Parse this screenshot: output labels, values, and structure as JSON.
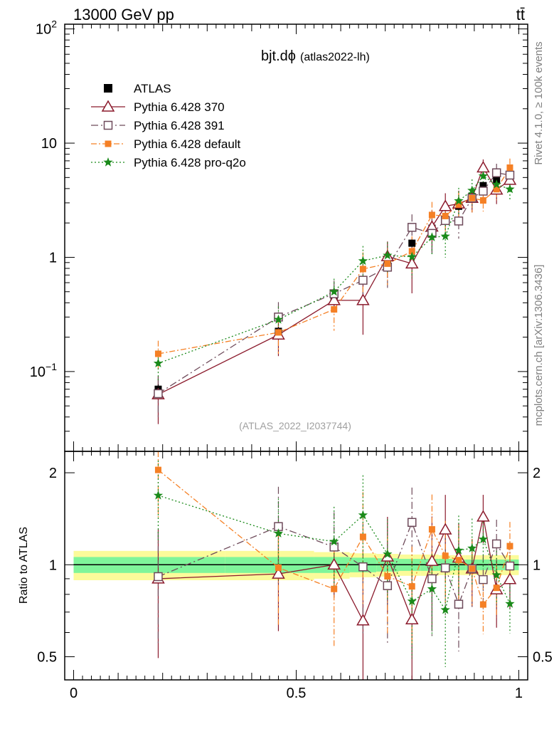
{
  "header": {
    "energy_label": "13000 GeV pp",
    "process_label": "tt̄"
  },
  "side_labels": {
    "rivet": "Rivet 4.1.0, ≥ 100k events",
    "mcplots": "mcplots.cern.ch [arXiv:1306.3436]"
  },
  "chart_data": {
    "type": "scatter",
    "title": "bjt.dϕ",
    "subtitle": "(atlas2022-lh)",
    "watermark": "(ATLAS_2022_I2037744)",
    "xlabel": "",
    "ylabel_ratio": "Ratio to ATLAS",
    "xlim": [
      -0.02,
      1.02
    ],
    "ylim_main": [
      0.02,
      110
    ],
    "ylim_ratio": [
      0.42,
      2.35
    ],
    "yscale": "log",
    "x_ticks": [
      {
        "value": 0,
        "label": "0"
      },
      {
        "value": 0.5,
        "label": "0.5"
      },
      {
        "value": 1,
        "label": "1"
      }
    ],
    "y_ticks_main": [
      {
        "value": 0.1,
        "base": "10",
        "exp": "−1"
      },
      {
        "value": 1,
        "base": "1",
        "exp": ""
      },
      {
        "value": 10,
        "base": "10",
        "exp": ""
      },
      {
        "value": 100,
        "base": "10",
        "exp": "2"
      }
    ],
    "y_ticks_ratio": [
      {
        "value": 0.5,
        "label": "0.5"
      },
      {
        "value": 1,
        "label": "1"
      },
      {
        "value": 2,
        "label": "2"
      }
    ],
    "x": [
      0.19,
      0.46,
      0.585,
      0.65,
      0.705,
      0.76,
      0.805,
      0.835,
      0.865,
      0.895,
      0.92,
      0.95,
      0.98
    ],
    "bin_edges": [
      0.0,
      0.34,
      0.54,
      0.62,
      0.68,
      0.73,
      0.78,
      0.82,
      0.85,
      0.88,
      0.91,
      0.935,
      0.965,
      1.0
    ],
    "reference": {
      "name": "ATLAS",
      "values": [
        0.07,
        0.225,
        0.42,
        0.64,
        0.96,
        1.33,
        1.8,
        2.15,
        2.8,
        3.4,
        4.25,
        4.7,
        5.3
      ],
      "errors": [
        0.007,
        0.02,
        0.03,
        0.04,
        0.06,
        0.08,
        0.1,
        0.12,
        0.15,
        0.17,
        0.2,
        0.22,
        0.25
      ],
      "band_inner": [
        0.06,
        0.06,
        0.06,
        0.055,
        0.05,
        0.045,
        0.045,
        0.045,
        0.04,
        0.04,
        0.04,
        0.04,
        0.04
      ],
      "band_outer": [
        0.11,
        0.11,
        0.1,
        0.09,
        0.085,
        0.08,
        0.08,
        0.075,
        0.075,
        0.075,
        0.075,
        0.075,
        0.075
      ]
    },
    "series": [
      {
        "name": "Pythia 6.428 370",
        "color": "#8b1a2c",
        "dash": "",
        "marker": "triangle-open",
        "values": [
          0.063,
          0.21,
          0.42,
          0.42,
          1.02,
          0.88,
          1.85,
          2.8,
          2.95,
          3.3,
          6.1,
          3.9,
          4.75
        ],
        "rel_err": [
          0.45,
          0.35,
          0.22,
          0.5,
          0.35,
          0.45,
          0.4,
          0.3,
          0.3,
          0.25,
          0.18,
          0.25,
          0.2
        ]
      },
      {
        "name": "Pythia 6.428 391",
        "color": "#6e4a5a",
        "dash": "10,4,2,4",
        "marker": "square-open",
        "values": [
          0.064,
          0.3,
          0.48,
          0.63,
          0.82,
          1.83,
          1.62,
          2.1,
          2.08,
          3.3,
          3.8,
          5.5,
          5.25
        ],
        "rel_err": [
          0.4,
          0.35,
          0.3,
          0.4,
          0.35,
          0.3,
          0.35,
          0.3,
          0.3,
          0.25,
          0.2,
          0.2,
          0.2
        ]
      },
      {
        "name": "Pythia 6.428 default",
        "color": "#f58025",
        "dash": "8,3,2,3",
        "marker": "square-filled",
        "values": [
          0.143,
          0.22,
          0.35,
          0.79,
          0.88,
          1.13,
          2.35,
          2.3,
          2.9,
          3.3,
          3.15,
          3.95,
          6.1
        ],
        "rel_err": [
          0.3,
          0.35,
          0.35,
          0.4,
          0.35,
          0.35,
          0.3,
          0.3,
          0.3,
          0.25,
          0.2,
          0.2,
          0.2
        ]
      },
      {
        "name": "Pythia 6.428 pro-q2o",
        "color": "#1a8a1a",
        "dash": "2,3",
        "marker": "star",
        "values": [
          0.118,
          0.285,
          0.5,
          0.93,
          1.04,
          1.01,
          1.5,
          1.53,
          3.12,
          3.85,
          5.15,
          4.35,
          3.95
        ],
        "rel_err": [
          0.3,
          0.3,
          0.3,
          0.35,
          0.3,
          0.35,
          0.3,
          0.35,
          0.3,
          0.25,
          0.2,
          0.2,
          0.2
        ]
      }
    ],
    "legend": {
      "placement": "top-left"
    }
  }
}
